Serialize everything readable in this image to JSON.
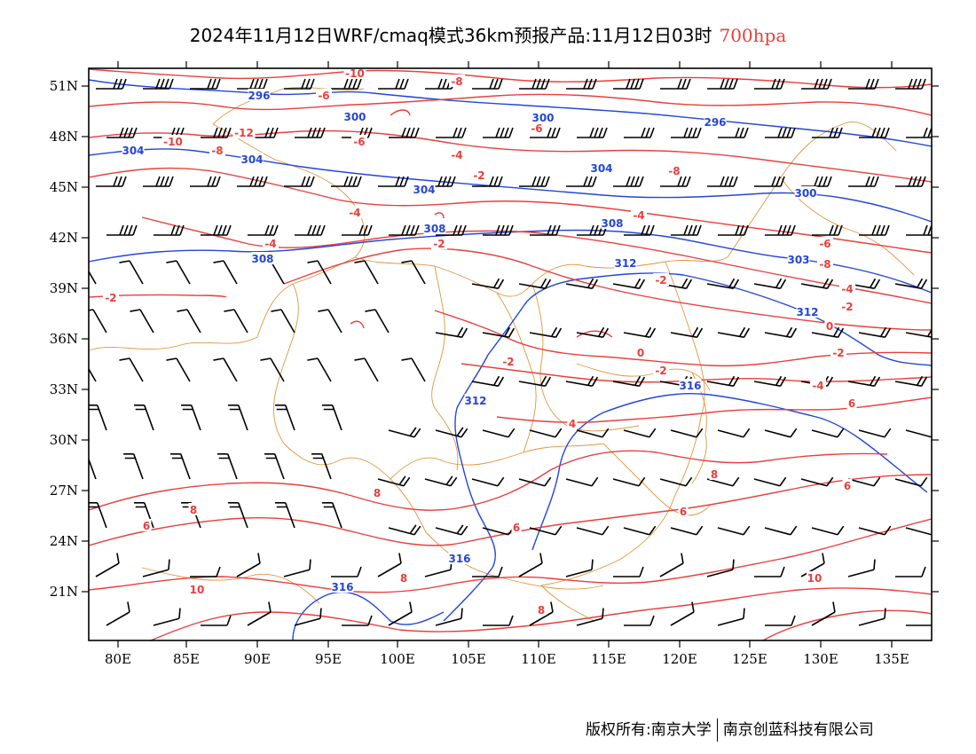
{
  "title": {
    "main": "2024年11月12日WRF/cmaq模式36km预报产品:11月12日03时",
    "level": "700hpa",
    "level_color": "#e8403c"
  },
  "colors": {
    "temperature": "#e8403c",
    "geopotential": "#2346d8",
    "boundary": "#e2943c",
    "barb": "#000000"
  },
  "axes": {
    "lat_labels": [
      "51N",
      "48N",
      "45N",
      "42N",
      "39N",
      "36N",
      "33N",
      "30N",
      "27N",
      "24N",
      "21N"
    ],
    "lon_labels": [
      "80E",
      "85E",
      "90E",
      "95E",
      "100E",
      "105E",
      "110E",
      "115E",
      "120E",
      "125E",
      "130E",
      "135E"
    ]
  },
  "contours": {
    "temperature_labels": [
      "-10",
      "-8",
      "-6",
      "-12",
      "-10",
      "-8",
      "-6",
      "-6",
      "-4",
      "-2",
      "-4",
      "-4",
      "-2",
      "-8",
      "-4",
      "-6",
      "-8",
      "-2",
      "-2",
      "-4",
      "-2",
      "0",
      "0",
      "-2",
      "-2",
      "-2",
      "-4",
      "4",
      "6",
      "8",
      "6",
      "6",
      "6",
      "8",
      "6",
      "8",
      "8",
      "10",
      "10",
      "8"
    ],
    "height_labels": [
      "296",
      "300",
      "300",
      "296",
      "304",
      "304",
      "300",
      "304",
      "308",
      "308",
      "308",
      "304",
      "312",
      "303",
      "312",
      "316",
      "312",
      "316",
      "316"
    ]
  },
  "footer": {
    "left": "版权所有:南京大学",
    "right": "南京创蓝科技有限公司"
  }
}
